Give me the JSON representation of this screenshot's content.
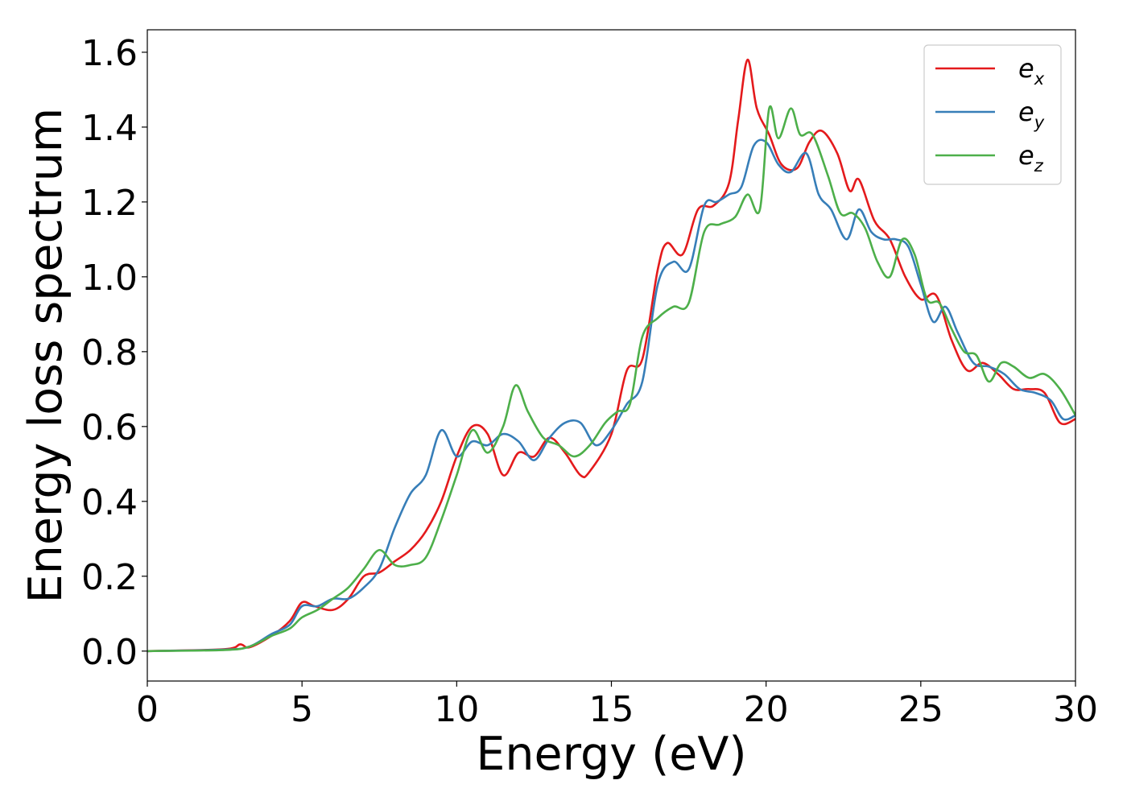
{
  "chart_data": {
    "type": "line",
    "xlabel": "Energy (eV)",
    "ylabel": "Energy loss spectrum",
    "xlim": [
      0,
      30
    ],
    "ylim": [
      -0.08,
      1.66
    ],
    "grid": false,
    "legend_position": "top-right",
    "x_ticks": [
      0,
      5,
      10,
      15,
      20,
      25,
      30
    ],
    "y_ticks": [
      0.0,
      0.2,
      0.4,
      0.6,
      0.8,
      1.0,
      1.2,
      1.4,
      1.6
    ],
    "x_tick_labels": [
      "0",
      "5",
      "10",
      "15",
      "20",
      "25",
      "30"
    ],
    "y_tick_labels": [
      "0.0",
      "0.2",
      "0.4",
      "0.6",
      "0.8",
      "1.0",
      "1.2",
      "1.4",
      "1.6"
    ],
    "series": [
      {
        "name": "e",
        "subscript": "x",
        "color": "#e41a1c",
        "x": [
          0,
          2.5,
          3.0,
          3.3,
          4.0,
          4.6,
          5.0,
          5.4,
          6.0,
          6.5,
          7.0,
          7.5,
          8.0,
          8.5,
          9.0,
          9.5,
          10.0,
          10.5,
          11.0,
          11.5,
          12.0,
          12.5,
          13.0,
          13.5,
          14.0,
          14.3,
          15.0,
          15.5,
          16.0,
          16.5,
          16.8,
          17.3,
          17.8,
          18.3,
          18.8,
          19.1,
          19.4,
          19.7,
          20.1,
          20.5,
          21.0,
          21.4,
          21.8,
          22.3,
          22.7,
          23.0,
          23.5,
          24.0,
          24.5,
          25.0,
          25.5,
          26.0,
          26.5,
          27.0,
          27.5,
          28.0,
          28.5,
          29.0,
          29.5,
          30.0
        ],
        "values": [
          0,
          0.005,
          0.018,
          0.01,
          0.04,
          0.08,
          0.13,
          0.12,
          0.11,
          0.14,
          0.2,
          0.21,
          0.24,
          0.27,
          0.32,
          0.4,
          0.52,
          0.6,
          0.58,
          0.47,
          0.53,
          0.52,
          0.57,
          0.53,
          0.47,
          0.48,
          0.58,
          0.75,
          0.78,
          1.02,
          1.09,
          1.06,
          1.18,
          1.19,
          1.25,
          1.42,
          1.58,
          1.45,
          1.38,
          1.3,
          1.29,
          1.36,
          1.39,
          1.33,
          1.23,
          1.26,
          1.15,
          1.1,
          1.0,
          0.94,
          0.95,
          0.83,
          0.75,
          0.77,
          0.74,
          0.7,
          0.7,
          0.69,
          0.61,
          0.62
        ]
      },
      {
        "name": "e",
        "subscript": "y",
        "color": "#377eb8",
        "x": [
          0,
          2.5,
          3.3,
          4.0,
          4.6,
          5.0,
          5.5,
          6.0,
          6.5,
          7.0,
          7.5,
          8.0,
          8.5,
          9.0,
          9.5,
          10.0,
          10.5,
          11.0,
          11.5,
          12.0,
          12.5,
          13.0,
          13.5,
          14.0,
          14.5,
          15.0,
          15.5,
          16.0,
          16.5,
          17.0,
          17.5,
          18.0,
          18.4,
          18.8,
          19.2,
          19.6,
          20.0,
          20.4,
          20.8,
          21.3,
          21.7,
          22.1,
          22.6,
          23.0,
          23.4,
          23.8,
          24.2,
          24.6,
          25.0,
          25.4,
          25.8,
          26.2,
          26.7,
          27.2,
          27.7,
          28.2,
          28.7,
          29.2,
          29.6,
          30.0
        ],
        "values": [
          0,
          0.004,
          0.012,
          0.045,
          0.07,
          0.12,
          0.12,
          0.14,
          0.14,
          0.17,
          0.22,
          0.33,
          0.42,
          0.47,
          0.59,
          0.52,
          0.56,
          0.55,
          0.58,
          0.56,
          0.51,
          0.57,
          0.61,
          0.61,
          0.55,
          0.59,
          0.66,
          0.72,
          0.98,
          1.04,
          1.02,
          1.19,
          1.2,
          1.22,
          1.24,
          1.35,
          1.36,
          1.3,
          1.28,
          1.33,
          1.22,
          1.18,
          1.1,
          1.18,
          1.12,
          1.1,
          1.1,
          1.08,
          0.98,
          0.88,
          0.92,
          0.85,
          0.77,
          0.76,
          0.74,
          0.7,
          0.69,
          0.67,
          0.62,
          0.63
        ]
      },
      {
        "name": "e",
        "subscript": "z",
        "color": "#4daf4a",
        "x": [
          0,
          2.5,
          3.3,
          4.0,
          4.6,
          5.0,
          5.5,
          6.0,
          6.5,
          7.0,
          7.5,
          8.0,
          8.5,
          9.0,
          9.5,
          10.0,
          10.5,
          11.0,
          11.5,
          11.9,
          12.3,
          12.8,
          13.3,
          13.8,
          14.3,
          14.8,
          15.2,
          15.6,
          16.0,
          16.5,
          17.0,
          17.5,
          18.0,
          18.5,
          19.0,
          19.4,
          19.8,
          20.1,
          20.4,
          20.8,
          21.1,
          21.5,
          22.0,
          22.4,
          22.8,
          23.2,
          23.6,
          24.0,
          24.4,
          24.8,
          25.2,
          25.6,
          26.0,
          26.4,
          26.8,
          27.2,
          27.6,
          28.0,
          28.5,
          29.0,
          29.5,
          30.0
        ],
        "values": [
          0,
          0.003,
          0.012,
          0.04,
          0.06,
          0.09,
          0.11,
          0.14,
          0.17,
          0.22,
          0.27,
          0.23,
          0.23,
          0.25,
          0.35,
          0.47,
          0.59,
          0.53,
          0.6,
          0.71,
          0.64,
          0.57,
          0.55,
          0.52,
          0.55,
          0.61,
          0.64,
          0.66,
          0.84,
          0.89,
          0.92,
          0.93,
          1.12,
          1.14,
          1.16,
          1.22,
          1.18,
          1.45,
          1.37,
          1.45,
          1.38,
          1.38,
          1.27,
          1.17,
          1.17,
          1.13,
          1.04,
          1.0,
          1.1,
          1.06,
          0.94,
          0.93,
          0.86,
          0.8,
          0.79,
          0.72,
          0.77,
          0.76,
          0.73,
          0.74,
          0.7,
          0.63
        ]
      }
    ]
  }
}
